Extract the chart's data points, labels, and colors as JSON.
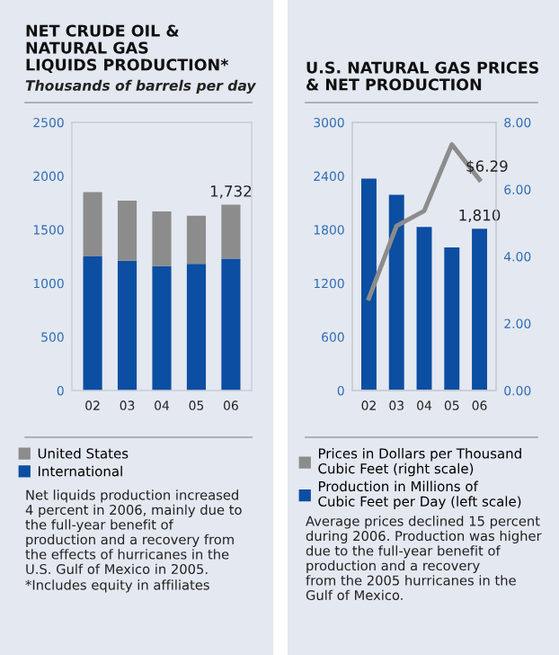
{
  "chart_data": [
    {
      "type": "bar",
      "title": "NET CRUDE OIL &\nNATURAL GAS\nLIQUIDS PRODUCTION*",
      "subtitle": "Thousands of barrels per day",
      "categories": [
        "02",
        "03",
        "04",
        "05",
        "06"
      ],
      "stacked": true,
      "series": [
        {
          "name": "International",
          "color": "#0b4ea2",
          "values": [
            1250,
            1210,
            1160,
            1180,
            1230
          ]
        },
        {
          "name": "United States",
          "color": "#8c8c8c",
          "values": [
            600,
            560,
            510,
            450,
            502
          ]
        }
      ],
      "totals": [
        null,
        null,
        null,
        null,
        "1,732"
      ],
      "ylim": [
        0,
        2500
      ],
      "yticks": [
        0,
        500,
        1000,
        1500,
        2000,
        2500
      ],
      "grid": false,
      "legend": "bottom",
      "annotations": [
        "Net liquids production increased\n4 percent in 2006, mainly due to\nthe full-year benefit of\nproduction and a recovery from\nthe effects of hurricanes in the\nU.S. Gulf of Mexico in 2005.",
        "*Includes equity in affiliates"
      ]
    },
    {
      "type": "bar",
      "title": "U.S. NATURAL GAS PRICES\n& NET PRODUCTION",
      "categories": [
        "02",
        "03",
        "04",
        "05",
        "06"
      ],
      "series": [
        {
          "name": "Prices in Dollars per Thousand\nCubic Feet (right scale)",
          "type": "line",
          "axis": "y2",
          "color": "#8c8c8c",
          "values": [
            2.75,
            4.91,
            5.36,
            7.34,
            6.29
          ],
          "value_labels": [
            null,
            null,
            null,
            null,
            "$6.29"
          ]
        },
        {
          "name": "Production in Millions of\nCubic Feet per Day (left scale)",
          "type": "bar",
          "color": "#0b4ea2",
          "values": [
            2370,
            2190,
            1830,
            1600,
            1810
          ],
          "value_labels": [
            null,
            null,
            null,
            null,
            "1,810"
          ]
        }
      ],
      "ylim": [
        0,
        3000
      ],
      "yticks": [
        0,
        600,
        1200,
        1800,
        2400,
        3000
      ],
      "y2lim": [
        0,
        8
      ],
      "y2ticks": [
        {
          "value": 0,
          "label": "0.00"
        },
        {
          "value": 2,
          "label": "2.00"
        },
        {
          "value": 4,
          "label": "4.00"
        },
        {
          "value": 6,
          "label": "6.00"
        },
        {
          "value": 8,
          "label": "8.00"
        }
      ],
      "grid": false,
      "legend": "bottom",
      "annotations": [
        "Average prices declined 15 percent\nduring 2006. Production was higher\ndue to the full-year benefit of\nproduction and a recovery\nfrom the 2005 hurricanes in the\nGulf of Mexico."
      ]
    }
  ]
}
